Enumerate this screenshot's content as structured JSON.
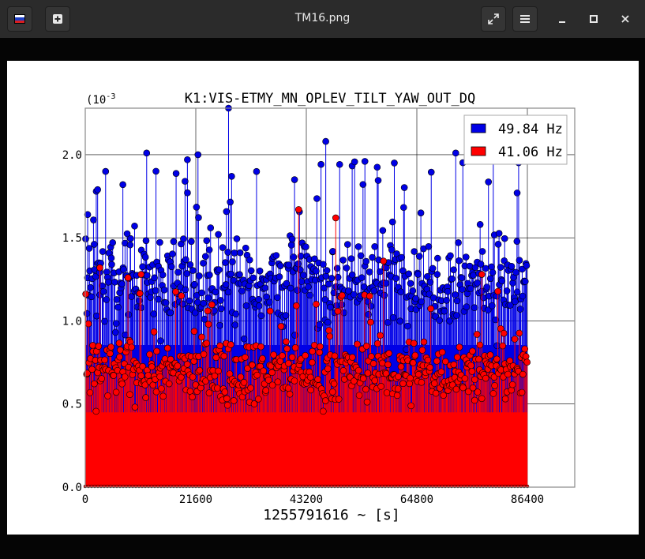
{
  "window": {
    "title": "TM16.png",
    "app_icon": "flag-icon",
    "new_button_icon": "plus-icon",
    "fullscreen_icon": "expand-icon",
    "menu_icon": "hamburger-icon",
    "minimize_icon": "minimize-icon",
    "maximize_icon": "maximize-icon",
    "close_icon": "close-icon"
  },
  "chart_data": {
    "type": "scatter",
    "style": "stem",
    "title": "K1:VIS-ETMY_MN_OPLEV_TILT_YAW_OUT_DQ",
    "xlabel": "1255791616 ~ [s]",
    "ylabel": "",
    "y_multiplier_label": "(10",
    "y_multiplier_exp": "-3",
    "xlim": [
      0,
      86400
    ],
    "ylim": [
      0,
      0.00228
    ],
    "x_ticks": [
      {
        "value": 0,
        "label": "0"
      },
      {
        "value": 21600,
        "label": "21600"
      },
      {
        "value": 43200,
        "label": "43200"
      },
      {
        "value": 64800,
        "label": "64800"
      },
      {
        "value": 86400,
        "label": "86400"
      }
    ],
    "y_ticks": [
      {
        "value": 0.0,
        "label": "0.0"
      },
      {
        "value": 0.0005,
        "label": "0.5"
      },
      {
        "value": 0.001,
        "label": "1.0"
      },
      {
        "value": 0.0015,
        "label": "1.5"
      },
      {
        "value": 0.002,
        "label": "2.0"
      }
    ],
    "grid": true,
    "legend_position": "top-right",
    "series": [
      {
        "name": "49.84 Hz",
        "color": "#0000e6",
        "typical_range": [
          0.00095,
          0.00155
        ],
        "highlighted_peaks": [
          {
            "x": 470,
            "y": 0.00164
          },
          {
            "x": 2150,
            "y": 0.00178
          },
          {
            "x": 2420,
            "y": 0.00179
          },
          {
            "x": 7350,
            "y": 0.00182
          },
          {
            "x": 12000,
            "y": 0.00201
          },
          {
            "x": 19500,
            "y": 0.00184
          },
          {
            "x": 19960,
            "y": 0.00197
          },
          {
            "x": 22030,
            "y": 0.002
          },
          {
            "x": 28000,
            "y": 0.00228
          },
          {
            "x": 28600,
            "y": 0.00187
          },
          {
            "x": 40900,
            "y": 0.00185
          },
          {
            "x": 47000,
            "y": 0.00208
          },
          {
            "x": 54650,
            "y": 0.00196
          },
          {
            "x": 60400,
            "y": 0.00195
          },
          {
            "x": 72400,
            "y": 0.00201
          },
          {
            "x": 79740,
            "y": 0.00209
          },
          {
            "x": 84400,
            "y": 0.00177
          }
        ]
      },
      {
        "name": "41.06 Hz",
        "color": "#ff0000",
        "typical_range": [
          0.0005,
          0.0009
        ],
        "highlighted_peaks": [
          {
            "x": 2850,
            "y": 0.00132
          },
          {
            "x": 8350,
            "y": 0.00126
          },
          {
            "x": 10900,
            "y": 0.00128
          },
          {
            "x": 41700,
            "y": 0.00167
          },
          {
            "x": 48950,
            "y": 0.00162
          },
          {
            "x": 58300,
            "y": 0.00136
          },
          {
            "x": 77500,
            "y": 0.00128
          }
        ]
      }
    ]
  }
}
